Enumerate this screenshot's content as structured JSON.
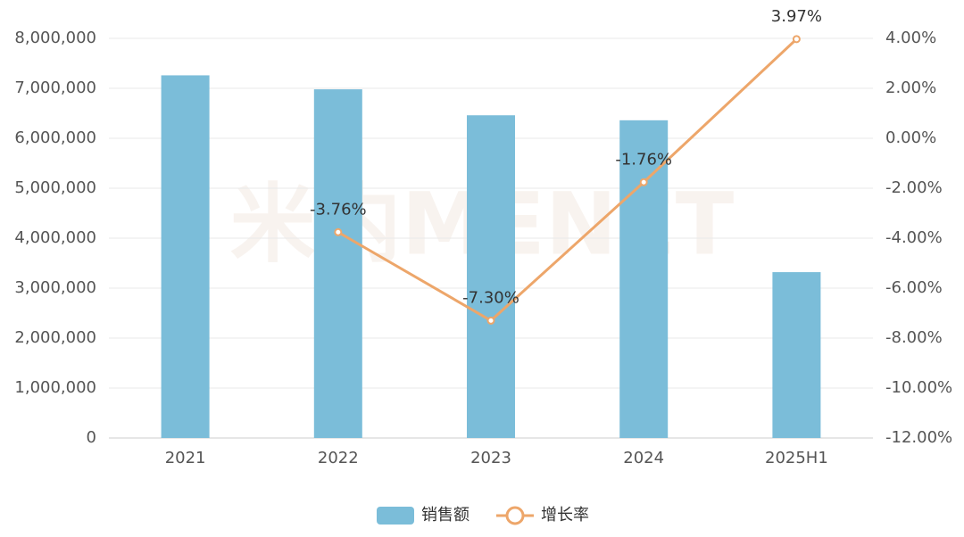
{
  "chart_data": {
    "type": "bar",
    "watermark": "米内MENET",
    "categories": [
      "2021",
      "2022",
      "2023",
      "2024",
      "2025H1"
    ],
    "series": [
      {
        "name": "销售额",
        "type": "bar",
        "color": "#7bbdd9",
        "values": [
          7260000,
          6980000,
          6460000,
          6360000,
          3320000
        ]
      },
      {
        "name": "增长率",
        "type": "line",
        "axis": "y2",
        "color": "#eda66a",
        "values": [
          null,
          -3.76,
          -7.3,
          -1.76,
          3.97
        ],
        "value_labels": [
          null,
          "-3.76%",
          "-7.30%",
          "-1.76%",
          "3.97%"
        ]
      }
    ],
    "ylim": [
      0,
      8000000
    ],
    "yticks": [
      0,
      {
        "value": 1000000,
        "label": "1,000,000"
      },
      {
        "value": 2000000,
        "label": "2,000,000"
      },
      {
        "value": 3000000,
        "label": "3,000,000"
      },
      {
        "value": 4000000,
        "label": "4,000,000"
      },
      {
        "value": 5000000,
        "label": "5,000,000"
      },
      {
        "value": 6000000,
        "label": "6,000,000"
      },
      {
        "value": 7000000,
        "label": "7,000,000"
      },
      {
        "value": 8000000,
        "label": "8,000,000"
      }
    ],
    "y2lim": [
      -12,
      4
    ],
    "y2ticks": [
      {
        "value": -12,
        "label": "-12.00%"
      },
      {
        "value": -10,
        "label": "-10.00%"
      },
      {
        "value": -8,
        "label": "-8.00%"
      },
      {
        "value": -6,
        "label": "-6.00%"
      },
      {
        "value": -4,
        "label": "-4.00%"
      },
      {
        "value": -2,
        "label": "-2.00%"
      },
      {
        "value": 0,
        "label": "0.00%"
      },
      {
        "value": 2,
        "label": "2.00%"
      },
      {
        "value": 4,
        "label": "4.00%"
      }
    ],
    "grid": true
  }
}
